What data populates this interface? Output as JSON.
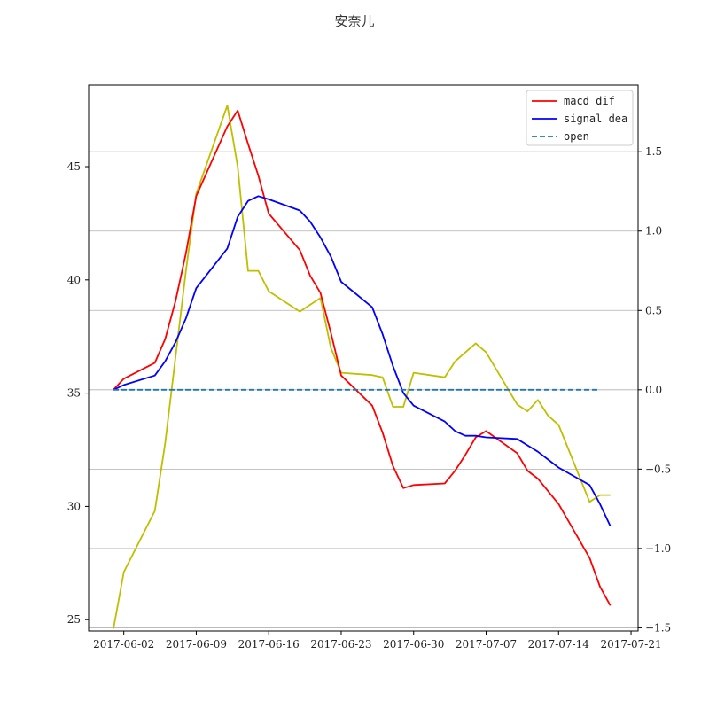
{
  "chart_data": {
    "type": "line",
    "title": "安奈儿",
    "legend_position": "top-right",
    "grid": {
      "right_axis_horizontal": true
    },
    "x_ticks": [
      "2017-06-02",
      "2017-06-09",
      "2017-06-16",
      "2017-06-23",
      "2017-06-30",
      "2017-07-07",
      "2017-07-14",
      "2017-07-21"
    ],
    "left_axis": {
      "ylim": [
        24.5,
        48.6
      ],
      "ticks": [
        "25",
        "30",
        "35",
        "40",
        "45"
      ],
      "tick_values": [
        25,
        30,
        35,
        40,
        45
      ]
    },
    "right_axis": {
      "ylim": [
        -1.52,
        1.92
      ],
      "ticks": [
        "1.5",
        "1.0",
        "0.5",
        "0.0",
        "−0.5",
        "−1.0",
        "−1.5"
      ],
      "tick_values": [
        1.5,
        1.0,
        0.5,
        0.0,
        -0.5,
        -1.0,
        -1.5
      ]
    },
    "price_series": {
      "color": "#bfbf00",
      "axis": "left",
      "points": [
        [
          "2017-06-01",
          24.6
        ],
        [
          "2017-06-02",
          27.1
        ],
        [
          "2017-06-05",
          29.8
        ],
        [
          "2017-06-06",
          32.8
        ],
        [
          "2017-06-07",
          36.6
        ],
        [
          "2017-06-08",
          40.4
        ],
        [
          "2017-06-09",
          43.8
        ],
        [
          "2017-06-12",
          47.7
        ],
        [
          "2017-06-13",
          45.0
        ],
        [
          "2017-06-14",
          40.4
        ],
        [
          "2017-06-15",
          40.4
        ],
        [
          "2017-06-16",
          39.5
        ],
        [
          "2017-06-19",
          38.6
        ],
        [
          "2017-06-20",
          38.9
        ],
        [
          "2017-06-21",
          39.2
        ],
        [
          "2017-06-22",
          37.0
        ],
        [
          "2017-06-23",
          35.9
        ],
        [
          "2017-06-26",
          35.8
        ],
        [
          "2017-06-27",
          35.7
        ],
        [
          "2017-06-28",
          34.4
        ],
        [
          "2017-06-29",
          34.4
        ],
        [
          "2017-06-30",
          35.9
        ],
        [
          "2017-07-03",
          35.7
        ],
        [
          "2017-07-04",
          36.4
        ],
        [
          "2017-07-05",
          36.8
        ],
        [
          "2017-07-06",
          37.2
        ],
        [
          "2017-07-07",
          36.8
        ],
        [
          "2017-07-10",
          34.5
        ],
        [
          "2017-07-11",
          34.2
        ],
        [
          "2017-07-12",
          34.7
        ],
        [
          "2017-07-13",
          34.0
        ],
        [
          "2017-07-14",
          33.6
        ],
        [
          "2017-07-17",
          30.2
        ],
        [
          "2017-07-18",
          30.5
        ],
        [
          "2017-07-19",
          30.5
        ]
      ]
    },
    "series": [
      {
        "name": "macd dif",
        "color": "#ff0000",
        "dash": "solid",
        "axis": "right",
        "points": [
          [
            "2017-06-01",
            0.0
          ],
          [
            "2017-06-02",
            0.07
          ],
          [
            "2017-06-05",
            0.17
          ],
          [
            "2017-06-06",
            0.32
          ],
          [
            "2017-06-07",
            0.56
          ],
          [
            "2017-06-08",
            0.86
          ],
          [
            "2017-06-09",
            1.22
          ],
          [
            "2017-06-12",
            1.66
          ],
          [
            "2017-06-13",
            1.76
          ],
          [
            "2017-06-14",
            1.55
          ],
          [
            "2017-06-15",
            1.35
          ],
          [
            "2017-06-16",
            1.11
          ],
          [
            "2017-06-19",
            0.88
          ],
          [
            "2017-06-20",
            0.72
          ],
          [
            "2017-06-21",
            0.61
          ],
          [
            "2017-06-22",
            0.36
          ],
          [
            "2017-06-23",
            0.09
          ],
          [
            "2017-06-26",
            -0.1
          ],
          [
            "2017-06-27",
            -0.27
          ],
          [
            "2017-06-28",
            -0.48
          ],
          [
            "2017-06-29",
            -0.62
          ],
          [
            "2017-06-30",
            -0.6
          ],
          [
            "2017-07-03",
            -0.59
          ],
          [
            "2017-07-04",
            -0.51
          ],
          [
            "2017-07-05",
            -0.41
          ],
          [
            "2017-07-06",
            -0.3
          ],
          [
            "2017-07-07",
            -0.26
          ],
          [
            "2017-07-10",
            -0.4
          ],
          [
            "2017-07-11",
            -0.51
          ],
          [
            "2017-07-12",
            -0.56
          ],
          [
            "2017-07-14",
            -0.72
          ],
          [
            "2017-07-17",
            -1.06
          ],
          [
            "2017-07-18",
            -1.24
          ],
          [
            "2017-07-19",
            -1.36
          ]
        ]
      },
      {
        "name": "signal dea",
        "color": "#0000ff",
        "dash": "solid",
        "axis": "right",
        "points": [
          [
            "2017-06-01",
            0.0
          ],
          [
            "2017-06-02",
            0.03
          ],
          [
            "2017-06-05",
            0.09
          ],
          [
            "2017-06-06",
            0.18
          ],
          [
            "2017-06-07",
            0.3
          ],
          [
            "2017-06-08",
            0.45
          ],
          [
            "2017-06-09",
            0.64
          ],
          [
            "2017-06-12",
            0.89
          ],
          [
            "2017-06-13",
            1.09
          ],
          [
            "2017-06-14",
            1.19
          ],
          [
            "2017-06-15",
            1.22
          ],
          [
            "2017-06-16",
            1.2
          ],
          [
            "2017-06-19",
            1.13
          ],
          [
            "2017-06-20",
            1.06
          ],
          [
            "2017-06-21",
            0.96
          ],
          [
            "2017-06-22",
            0.84
          ],
          [
            "2017-06-23",
            0.68
          ],
          [
            "2017-06-26",
            0.52
          ],
          [
            "2017-06-27",
            0.35
          ],
          [
            "2017-06-28",
            0.15
          ],
          [
            "2017-06-29",
            -0.02
          ],
          [
            "2017-06-30",
            -0.1
          ],
          [
            "2017-07-03",
            -0.2
          ],
          [
            "2017-07-04",
            -0.26
          ],
          [
            "2017-07-05",
            -0.29
          ],
          [
            "2017-07-06",
            -0.29
          ],
          [
            "2017-07-07",
            -0.3
          ],
          [
            "2017-07-10",
            -0.31
          ],
          [
            "2017-07-11",
            -0.35
          ],
          [
            "2017-07-12",
            -0.39
          ],
          [
            "2017-07-13",
            -0.44
          ],
          [
            "2017-07-14",
            -0.49
          ],
          [
            "2017-07-17",
            -0.6
          ],
          [
            "2017-07-18",
            -0.72
          ],
          [
            "2017-07-19",
            -0.86
          ]
        ]
      },
      {
        "name": "open",
        "color": "#1f77b4",
        "dash": "dashed",
        "axis": "right",
        "points": [
          [
            "2017-06-01",
            0.0
          ],
          [
            "2017-07-18",
            0.0
          ]
        ]
      }
    ]
  }
}
